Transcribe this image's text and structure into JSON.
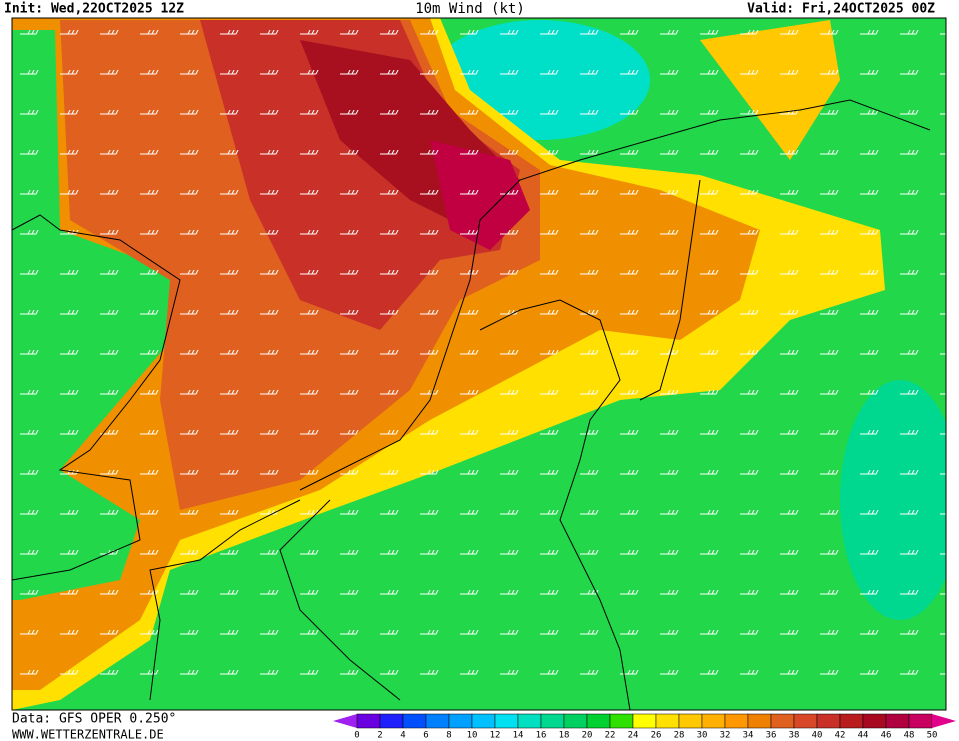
{
  "header": {
    "init": "Init: Wed,22OCT2025 12Z",
    "title": "10m Wind (kt)",
    "valid": "Valid: Fri,24OCT2025 00Z"
  },
  "footer": {
    "source": "Data: GFS OPER 0.250°",
    "website": "WWW.WETTERZENTRALE.DE"
  },
  "colorbar": {
    "labels": [
      "0",
      "2",
      "4",
      "6",
      "8",
      "10",
      "12",
      "14",
      "16",
      "18",
      "20",
      "22",
      "24",
      "26",
      "28",
      "30",
      "32",
      "34",
      "36",
      "38",
      "40",
      "42",
      "44",
      "46",
      "48",
      "50"
    ],
    "colors": [
      "#6a00e0",
      "#2020ff",
      "#0050ff",
      "#0080ff",
      "#00a0ff",
      "#00c0ff",
      "#00e0f0",
      "#00e0c0",
      "#00d890",
      "#00d060",
      "#00d030",
      "#30e000",
      "#ffff00",
      "#ffe000",
      "#ffc800",
      "#ffb000",
      "#ff9800",
      "#f08000",
      "#e06020",
      "#d84828",
      "#c83028",
      "#b81c1c",
      "#a80820",
      "#b00040",
      "#c80060"
    ],
    "under_color": "#a020f0",
    "over_color": "#e0008c"
  }
}
